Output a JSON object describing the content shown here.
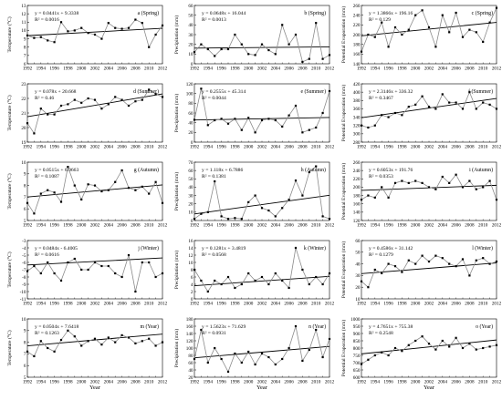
{
  "chart_data": [
    {
      "type": "line",
      "panel": "a",
      "label": "a (Spring)",
      "eq": "y = 0.0441x + 9.3338",
      "r2": "R² = 0.0016",
      "ylabel": "Temperature (°C)",
      "xlabel": "",
      "ylim": [
        6,
        13
      ],
      "yticks": [
        6,
        7,
        8,
        9,
        10,
        11,
        12,
        13
      ],
      "slope": 0.0441,
      "intercept": 9.3338,
      "x": [
        1992,
        1993,
        1994,
        1995,
        1996,
        1997,
        1998,
        1999,
        2000,
        2001,
        2002,
        2003,
        2004,
        2005,
        2006,
        2007,
        2008,
        2009,
        2010,
        2011,
        2012
      ],
      "values": [
        9.4,
        9.1,
        9.2,
        8.8,
        8.6,
        11.0,
        9.9,
        10.0,
        10.3,
        9.7,
        9.5,
        9.0,
        10.9,
        10.3,
        10.2,
        10.3,
        11.3,
        10.9,
        8.0,
        9.5,
        10.6
      ]
    },
    {
      "type": "line",
      "panel": "b",
      "label": "b (Spring)",
      "eq": "y = 0.0648x + 16.044",
      "r2": "R² = 0.0013",
      "ylabel": "Precipitation (mm)",
      "xlabel": "",
      "ylim": [
        0,
        60
      ],
      "yticks": [
        0,
        10,
        20,
        30,
        40,
        50,
        60
      ],
      "slope": 0.0648,
      "intercept": 16.044,
      "x": [
        1992,
        1993,
        1994,
        1995,
        1996,
        1997,
        1998,
        1999,
        2000,
        2001,
        2002,
        2003,
        2004,
        2005,
        2006,
        2007,
        2008,
        2009,
        2010,
        2011,
        2012
      ],
      "values": [
        12,
        20,
        15,
        8,
        15,
        15,
        30,
        20,
        10,
        9,
        20,
        14,
        10,
        40,
        20,
        30,
        2,
        5,
        42,
        5,
        9
      ]
    },
    {
      "type": "line",
      "panel": "c",
      "label": "c (Spring)",
      "eq": "y = 1.3866x + 196.16",
      "r2": "R² = 0.129",
      "ylabel": "Potential Evaporation (mm)",
      "xlabel": "",
      "ylim": [
        140,
        260
      ],
      "yticks": [
        140,
        160,
        180,
        200,
        220,
        240,
        260
      ],
      "slope": 1.3866,
      "intercept": 196.16,
      "x": [
        1992,
        1993,
        1994,
        1995,
        1996,
        1997,
        1998,
        1999,
        2000,
        2001,
        2002,
        2003,
        2004,
        2005,
        2006,
        2007,
        2008,
        2009,
        2010,
        2011,
        2012
      ],
      "values": [
        165,
        200,
        195,
        225,
        175,
        215,
        200,
        210,
        240,
        250,
        215,
        175,
        240,
        205,
        245,
        195,
        210,
        205,
        185,
        225,
        255
      ]
    },
    {
      "type": "line",
      "panel": "d",
      "label": "d (Summer)",
      "eq": "y = 0.078x + 20.668",
      "r2": "R² = 0.46",
      "ylabel": "Temperature (°C)",
      "xlabel": "",
      "ylim": [
        19,
        23
      ],
      "yticks": [
        19,
        20,
        21,
        22,
        23
      ],
      "slope": 0.078,
      "intercept": 20.668,
      "x": [
        1992,
        1993,
        1994,
        1995,
        1996,
        1997,
        1998,
        1999,
        2000,
        2001,
        2002,
        2003,
        2004,
        2005,
        2006,
        2007,
        2008,
        2009,
        2010,
        2011,
        2012
      ],
      "values": [
        20.3,
        19.6,
        21.3,
        20.9,
        20.9,
        21.5,
        21.6,
        21.9,
        21.7,
        22.0,
        21.9,
        21.3,
        21.6,
        22.1,
        21.9,
        21.5,
        21.8,
        21.9,
        22.6,
        22.3,
        22.1
      ]
    },
    {
      "type": "line",
      "panel": "e",
      "label": "e (Summer)",
      "eq": "y = 0.2555x + 45.314",
      "r2": "R² = 0.0044",
      "ylabel": "Precipitation (mm)",
      "xlabel": "",
      "ylim": [
        0,
        120
      ],
      "yticks": [
        0,
        20,
        40,
        60,
        80,
        100,
        120
      ],
      "slope": 0.2555,
      "intercept": 45.314,
      "x": [
        1992,
        1993,
        1994,
        1995,
        1996,
        1997,
        1998,
        1999,
        2000,
        2001,
        2002,
        2003,
        2004,
        2005,
        2006,
        2007,
        2008,
        2009,
        2010,
        2011,
        2012
      ],
      "values": [
        46,
        110,
        35,
        45,
        48,
        38,
        48,
        25,
        50,
        20,
        45,
        48,
        45,
        32,
        55,
        75,
        20,
        25,
        30,
        60,
        105
      ]
    },
    {
      "type": "line",
      "panel": "f",
      "label": "f (Summer)",
      "eq": "y = 2.3146x + 336.32",
      "r2": "R² = 0.3467",
      "ylabel": "Potential Evaporation (mm)",
      "xlabel": "",
      "ylim": [
        280,
        420
      ],
      "yticks": [
        280,
        300,
        320,
        340,
        360,
        380,
        400,
        420
      ],
      "slope": 2.3146,
      "intercept": 336.32,
      "x": [
        1992,
        1993,
        1994,
        1995,
        1996,
        1997,
        1998,
        1999,
        2000,
        2001,
        2002,
        2003,
        2004,
        2005,
        2006,
        2007,
        2008,
        2009,
        2010,
        2011,
        2012
      ],
      "values": [
        320,
        315,
        320,
        345,
        340,
        350,
        345,
        365,
        370,
        390,
        365,
        360,
        395,
        375,
        375,
        360,
        400,
        360,
        375,
        370,
        360
      ]
    },
    {
      "type": "line",
      "panel": "g",
      "label": "g (Autumn)",
      "eq": "y = 0.0515x + 6.9663",
      "r2": "R² = 0.1087",
      "ylabel": "Temperature (°C)",
      "xlabel": "",
      "ylim": [
        5,
        10
      ],
      "yticks": [
        5,
        6,
        7,
        8,
        9,
        10
      ],
      "slope": 0.0515,
      "intercept": 6.9663,
      "x": [
        1992,
        1993,
        1994,
        1995,
        1996,
        1997,
        1998,
        1999,
        2000,
        2001,
        2002,
        2003,
        2004,
        2005,
        2006,
        2007,
        2008,
        2009,
        2010,
        2011,
        2012
      ],
      "values": [
        6.5,
        5.6,
        7.3,
        7.6,
        7.4,
        6.6,
        9.6,
        8.0,
        6.8,
        8.1,
        8.0,
        7.5,
        7.6,
        8.3,
        9.3,
        7.8,
        7.6,
        7.9,
        7.3,
        8.3,
        6.5
      ]
    },
    {
      "type": "line",
      "panel": "h",
      "label": "h (Autumn)",
      "eq": "y = 1.118x + 6.7886",
      "r2": "R² = 0.1381",
      "ylabel": "Precipitation (mm)",
      "xlabel": "",
      "ylim": [
        0,
        70
      ],
      "yticks": [
        0,
        10,
        20,
        30,
        40,
        50,
        60,
        70
      ],
      "slope": 1.118,
      "intercept": 6.7886,
      "x": [
        1992,
        1993,
        1994,
        1995,
        1996,
        1997,
        1998,
        1999,
        2000,
        2001,
        2002,
        2003,
        2004,
        2005,
        2006,
        2007,
        2008,
        2009,
        2010,
        2011,
        2012
      ],
      "values": [
        2,
        8,
        10,
        47,
        5,
        2,
        3,
        2,
        22,
        30,
        15,
        12,
        5,
        15,
        25,
        48,
        30,
        58,
        65,
        5,
        2
      ]
    },
    {
      "type": "line",
      "panel": "i",
      "label": "i (Autumn)",
      "eq": "y = 0.6053x + 191.76",
      "r2": "R² = 0.0353",
      "ylabel": "Potential Evaporation (mm)",
      "xlabel": "",
      "ylim": [
        120,
        260
      ],
      "yticks": [
        120,
        140,
        160,
        180,
        200,
        220,
        240,
        260
      ],
      "slope": 0.6053,
      "intercept": 191.76,
      "x": [
        1992,
        1993,
        1994,
        1995,
        1996,
        1997,
        1998,
        1999,
        2000,
        2001,
        2002,
        2003,
        2004,
        2005,
        2006,
        2007,
        2008,
        2009,
        2010,
        2011,
        2012
      ],
      "values": [
        170,
        180,
        175,
        200,
        175,
        210,
        215,
        210,
        215,
        210,
        200,
        195,
        225,
        210,
        230,
        200,
        215,
        195,
        200,
        215,
        170
      ]
    },
    {
      "type": "line",
      "panel": "j",
      "label": "j (Winter)",
      "eq": "y = 0.0484x - 6.4005",
      "r2": "R² = 0.0616",
      "ylabel": "Temperature (°C)",
      "xlabel": "",
      "ylim": [
        -11,
        -3
      ],
      "yticks": [
        -11,
        -10,
        -9,
        -8,
        -7,
        -6,
        -5,
        -4,
        -3
      ],
      "slope": 0.0484,
      "intercept": -6.4005,
      "x": [
        1992,
        1993,
        1994,
        1995,
        1996,
        1997,
        1998,
        1999,
        2000,
        2001,
        2002,
        2003,
        2004,
        2005,
        2006,
        2007,
        2008,
        2009,
        2010,
        2011,
        2012
      ],
      "values": [
        -7.2,
        -6.5,
        -7.5,
        -6.0,
        -7.5,
        -8.5,
        -6.0,
        -5.5,
        -7.0,
        -7.0,
        -6.0,
        -6.5,
        -6.5,
        -7.5,
        -8.0,
        -5.0,
        -10.0,
        -6.0,
        -6.0,
        -8.0,
        -7.5
      ]
    },
    {
      "type": "line",
      "panel": "k",
      "label": "k (Winter)",
      "eq": "y = 0.1281x + 3.4819",
      "r2": "R² = 0.0568",
      "ylabel": "Precipitation (mm)",
      "xlabel": "",
      "ylim": [
        0,
        16
      ],
      "yticks": [
        0,
        2,
        4,
        6,
        8,
        10,
        12,
        14,
        16
      ],
      "slope": 0.1281,
      "intercept": 3.4819,
      "x": [
        1992,
        1993,
        1994,
        1995,
        1996,
        1997,
        1998,
        1999,
        2000,
        2001,
        2002,
        2003,
        2004,
        2005,
        2006,
        2007,
        2008,
        2009,
        2010,
        2011,
        2012
      ],
      "values": [
        8,
        5,
        2,
        5,
        4,
        6,
        3,
        4,
        7,
        5,
        6,
        4,
        7,
        5,
        3,
        14,
        8,
        4,
        6,
        4,
        7
      ]
    },
    {
      "type": "line",
      "panel": "l",
      "label": "l (Winter)",
      "eq": "y = 0.4586x + 31.142",
      "r2": "R² = 0.1279",
      "ylabel": "Potential Evaporation (mm)",
      "xlabel": "",
      "ylim": [
        10,
        60
      ],
      "yticks": [
        10,
        20,
        30,
        40,
        50,
        60
      ],
      "slope": 0.4586,
      "intercept": 31.142,
      "x": [
        1992,
        1993,
        1994,
        1995,
        1996,
        1997,
        1998,
        1999,
        2000,
        2001,
        2002,
        2003,
        2004,
        2005,
        2006,
        2007,
        2008,
        2009,
        2010,
        2011,
        2012
      ],
      "values": [
        25,
        20,
        35,
        32,
        40,
        38,
        33,
        43,
        40,
        47,
        42,
        47,
        45,
        40,
        38,
        44,
        30,
        43,
        45,
        40,
        42
      ]
    },
    {
      "type": "line",
      "panel": "m",
      "label": "m (Year)",
      "eq": "y = 0.0504x + 7.6418",
      "r2": "R² = 0.1263",
      "ylabel": "Temperature (°C)",
      "xlabel": "Year",
      "ylim": [
        5,
        10
      ],
      "yticks": [
        5,
        6,
        7,
        8,
        9,
        10
      ],
      "slope": 0.0504,
      "intercept": 7.6418,
      "x": [
        1992,
        1993,
        1994,
        1995,
        1996,
        1997,
        1998,
        1999,
        2000,
        2001,
        2002,
        2003,
        2004,
        2005,
        2006,
        2007,
        2008,
        2009,
        2010,
        2011,
        2012
      ],
      "values": [
        7.2,
        6.8,
        8.1,
        7.5,
        7.2,
        8.2,
        9.0,
        8.5,
        7.7,
        8.1,
        8.3,
        7.8,
        8.4,
        8.0,
        8.6,
        8.4,
        7.9,
        8.1,
        8.3,
        7.7,
        8.0
      ]
    },
    {
      "type": "line",
      "panel": "n",
      "label": "n (Year)",
      "eq": "y = 1.5623x + 71.629",
      "r2": "R² = 0.0931",
      "ylabel": "Precipitation (mm)",
      "xlabel": "Year",
      "ylim": [
        20,
        180
      ],
      "yticks": [
        20,
        40,
        60,
        80,
        100,
        120,
        140,
        160,
        180
      ],
      "slope": 1.5623,
      "intercept": 71.629,
      "x": [
        1992,
        1993,
        1994,
        1995,
        1996,
        1997,
        1998,
        1999,
        2000,
        2001,
        2002,
        2003,
        2004,
        2005,
        2006,
        2007,
        2008,
        2009,
        2010,
        2011,
        2012
      ],
      "values": [
        70,
        150,
        60,
        100,
        70,
        35,
        85,
        60,
        90,
        55,
        85,
        75,
        55,
        70,
        100,
        160,
        65,
        95,
        150,
        75,
        125
      ]
    },
    {
      "type": "line",
      "panel": "o",
      "label": "o (Year)",
      "eq": "y = 4.7651x + 755.38",
      "r2": "R² = 0.2548",
      "ylabel": "Potential Evaporation (mm)",
      "xlabel": "Year",
      "ylim": [
        600,
        1000
      ],
      "yticks": [
        600,
        650,
        700,
        750,
        800,
        850,
        900,
        950,
        1000
      ],
      "slope": 4.7651,
      "intercept": 755.38,
      "x": [
        1992,
        1993,
        1994,
        1995,
        1996,
        1997,
        1998,
        1999,
        2000,
        2001,
        2002,
        2003,
        2004,
        2005,
        2006,
        2007,
        2008,
        2009,
        2010,
        2011,
        2012
      ],
      "values": [
        690,
        720,
        750,
        770,
        750,
        800,
        780,
        820,
        850,
        880,
        830,
        790,
        850,
        810,
        870,
        800,
        830,
        790,
        800,
        810,
        820
      ]
    }
  ],
  "xticks": [
    "1992",
    "1994",
    "1996",
    "1998",
    "2000",
    "2002",
    "2004",
    "2006",
    "2008",
    "2010",
    "2012"
  ]
}
